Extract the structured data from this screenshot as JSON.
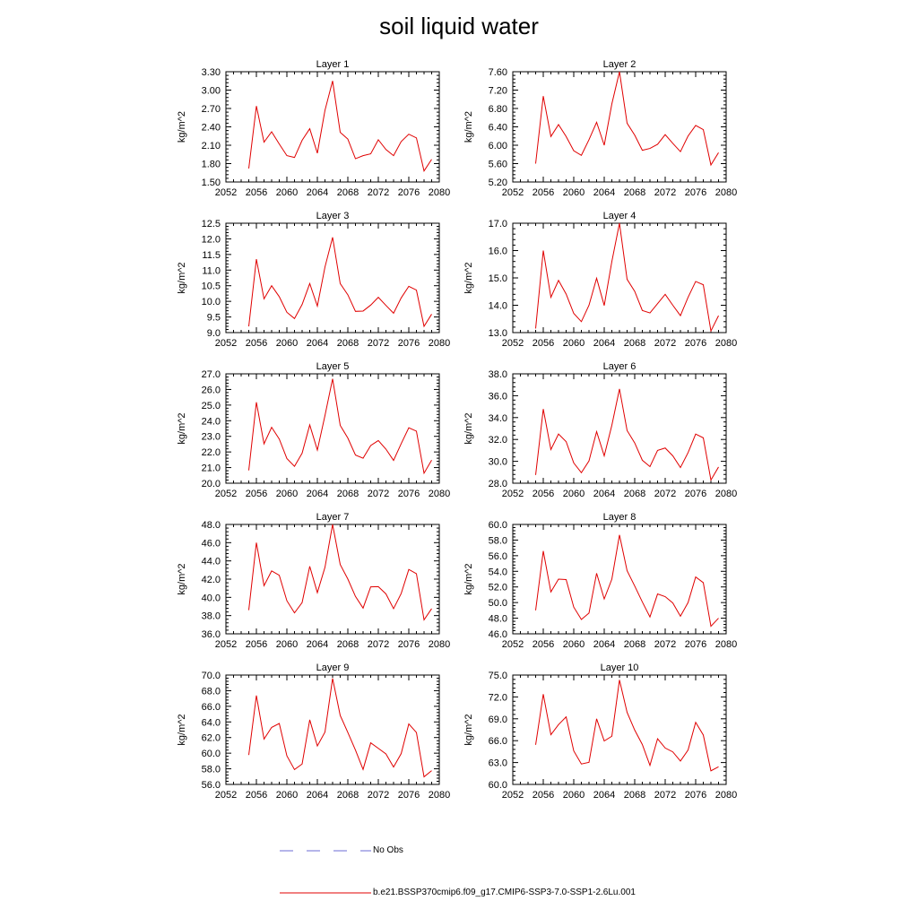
{
  "page": {
    "title": "soil liquid water"
  },
  "legend": {
    "no_obs_label": "No Obs",
    "model_label": "b.e21.BSSP370cmip6.f09_g17.CMIP6-SSP3-7.0-SSP1-2.6Lu.001",
    "obs_color": "#6b6bd6",
    "model_color": "#e00000"
  },
  "chart_data": [
    {
      "type": "line",
      "title": "Layer 1",
      "ylabel": "kg/m^2",
      "xlim": [
        2052,
        2080
      ],
      "ylim": [
        1.5,
        3.3
      ],
      "xticks": [
        "2052",
        "2056",
        "2060",
        "2064",
        "2068",
        "2072",
        "2076",
        "2080"
      ],
      "yticks": [
        "1.50",
        "1.80",
        "2.10",
        "2.40",
        "2.70",
        "3.00",
        "3.30"
      ],
      "x": [
        2055,
        2056,
        2057,
        2058,
        2059,
        2060,
        2061,
        2062,
        2063,
        2064,
        2065,
        2066,
        2067,
        2068,
        2069,
        2070,
        2071,
        2072,
        2073,
        2074,
        2075,
        2076,
        2077,
        2078,
        2079
      ],
      "series": [
        {
          "values": [
            1.72,
            2.74,
            2.15,
            2.32,
            2.12,
            1.93,
            1.9,
            2.18,
            2.37,
            1.97,
            2.67,
            3.15,
            2.31,
            2.2,
            1.88,
            1.93,
            1.96,
            2.19,
            2.03,
            1.93,
            2.16,
            2.28,
            2.22,
            1.68,
            1.87
          ]
        }
      ]
    },
    {
      "type": "line",
      "title": "Layer 2",
      "ylabel": "kg/m^2",
      "xlim": [
        2052,
        2080
      ],
      "ylim": [
        5.2,
        7.6
      ],
      "xticks": [
        "2052",
        "2056",
        "2060",
        "2064",
        "2068",
        "2072",
        "2076",
        "2080"
      ],
      "yticks": [
        "5.20",
        "5.60",
        "6.00",
        "6.40",
        "6.80",
        "7.20",
        "7.60"
      ],
      "x": [
        2055,
        2056,
        2057,
        2058,
        2059,
        2060,
        2061,
        2062,
        2063,
        2064,
        2065,
        2066,
        2067,
        2068,
        2069,
        2070,
        2071,
        2072,
        2073,
        2074,
        2075,
        2076,
        2077,
        2078,
        2079
      ],
      "series": [
        {
          "values": [
            5.6,
            7.07,
            6.19,
            6.45,
            6.19,
            5.88,
            5.78,
            6.12,
            6.5,
            6.0,
            6.9,
            7.6,
            6.48,
            6.22,
            5.89,
            5.93,
            6.02,
            6.23,
            6.04,
            5.86,
            6.2,
            6.43,
            6.34,
            5.57,
            5.84
          ]
        }
      ]
    },
    {
      "type": "line",
      "title": "Layer 3",
      "ylabel": "kg/m^2",
      "xlim": [
        2052,
        2080
      ],
      "ylim": [
        9.0,
        12.5
      ],
      "xticks": [
        "2052",
        "2056",
        "2060",
        "2064",
        "2068",
        "2072",
        "2076",
        "2080"
      ],
      "yticks": [
        "9.0",
        "9.5",
        "10.0",
        "10.5",
        "11.0",
        "11.5",
        "12.0",
        "12.5"
      ],
      "x": [
        2055,
        2056,
        2057,
        2058,
        2059,
        2060,
        2061,
        2062,
        2063,
        2064,
        2065,
        2066,
        2067,
        2068,
        2069,
        2070,
        2071,
        2072,
        2073,
        2074,
        2075,
        2076,
        2077,
        2078,
        2079
      ],
      "series": [
        {
          "values": [
            9.2,
            11.35,
            10.08,
            10.5,
            10.15,
            9.65,
            9.45,
            9.9,
            10.57,
            9.85,
            11.1,
            12.05,
            10.57,
            10.21,
            9.68,
            9.69,
            9.88,
            10.13,
            9.87,
            9.62,
            10.11,
            10.48,
            10.36,
            9.2,
            9.59
          ]
        }
      ]
    },
    {
      "type": "line",
      "title": "Layer 4",
      "ylabel": "kg/m^2",
      "xlim": [
        2052,
        2080
      ],
      "ylim": [
        13.0,
        17.0
      ],
      "xticks": [
        "2052",
        "2056",
        "2060",
        "2064",
        "2068",
        "2072",
        "2076",
        "2080"
      ],
      "yticks": [
        "13.0",
        "14.0",
        "15.0",
        "16.0",
        "17.0"
      ],
      "x": [
        2055,
        2056,
        2057,
        2058,
        2059,
        2060,
        2061,
        2062,
        2063,
        2064,
        2065,
        2066,
        2067,
        2068,
        2069,
        2070,
        2071,
        2072,
        2073,
        2074,
        2075,
        2076,
        2077,
        2078,
        2079
      ],
      "series": [
        {
          "values": [
            13.15,
            16.0,
            14.29,
            14.91,
            14.41,
            13.7,
            13.4,
            14.0,
            14.99,
            13.99,
            15.6,
            17.0,
            14.95,
            14.51,
            13.81,
            13.72,
            14.06,
            14.4,
            14.0,
            13.62,
            14.29,
            14.87,
            14.75,
            13.06,
            13.62
          ]
        }
      ]
    },
    {
      "type": "line",
      "title": "Layer 5",
      "ylabel": "kg/m^2",
      "xlim": [
        2052,
        2080
      ],
      "ylim": [
        20.0,
        27.0
      ],
      "xticks": [
        "2052",
        "2056",
        "2060",
        "2064",
        "2068",
        "2072",
        "2076",
        "2080"
      ],
      "yticks": [
        "20.0",
        "21.0",
        "22.0",
        "23.0",
        "24.0",
        "25.0",
        "26.0",
        "27.0"
      ],
      "x": [
        2055,
        2056,
        2057,
        2058,
        2059,
        2060,
        2061,
        2062,
        2063,
        2064,
        2065,
        2066,
        2067,
        2068,
        2069,
        2070,
        2071,
        2072,
        2073,
        2074,
        2075,
        2076,
        2077,
        2078,
        2079
      ],
      "series": [
        {
          "values": [
            20.82,
            25.18,
            22.52,
            23.58,
            22.83,
            21.58,
            21.08,
            21.92,
            23.73,
            22.12,
            24.33,
            26.68,
            23.7,
            22.89,
            21.8,
            21.6,
            22.41,
            22.73,
            22.18,
            21.46,
            22.53,
            23.55,
            23.33,
            20.64,
            21.48
          ]
        }
      ]
    },
    {
      "type": "line",
      "title": "Layer 6",
      "ylabel": "kg/m^2",
      "xlim": [
        2052,
        2080
      ],
      "ylim": [
        28.0,
        38.0
      ],
      "xticks": [
        "2052",
        "2056",
        "2060",
        "2064",
        "2068",
        "2072",
        "2076",
        "2080"
      ],
      "yticks": [
        "28.0",
        "30.0",
        "32.0",
        "34.0",
        "36.0",
        "38.0"
      ],
      "x": [
        2055,
        2056,
        2057,
        2058,
        2059,
        2060,
        2061,
        2062,
        2063,
        2064,
        2065,
        2066,
        2067,
        2068,
        2069,
        2070,
        2071,
        2072,
        2073,
        2074,
        2075,
        2076,
        2077,
        2078,
        2079
      ],
      "series": [
        {
          "values": [
            28.75,
            34.78,
            31.08,
            32.5,
            31.8,
            29.85,
            28.96,
            30.04,
            32.72,
            30.5,
            33.3,
            36.62,
            32.82,
            31.68,
            30.1,
            29.52,
            31.0,
            31.22,
            30.5,
            29.43,
            30.79,
            32.49,
            32.15,
            28.29,
            29.48
          ]
        }
      ]
    },
    {
      "type": "line",
      "title": "Layer 7",
      "ylabel": "kg/m^2",
      "xlim": [
        2052,
        2080
      ],
      "ylim": [
        36.0,
        48.0
      ],
      "xticks": [
        "2052",
        "2056",
        "2060",
        "2064",
        "2068",
        "2072",
        "2076",
        "2080"
      ],
      "yticks": [
        "36.0",
        "38.0",
        "40.0",
        "42.0",
        "44.0",
        "46.0",
        "48.0"
      ],
      "x": [
        2055,
        2056,
        2057,
        2058,
        2059,
        2060,
        2061,
        2062,
        2063,
        2064,
        2065,
        2066,
        2067,
        2068,
        2069,
        2070,
        2071,
        2072,
        2073,
        2074,
        2075,
        2076,
        2077,
        2078,
        2079
      ],
      "series": [
        {
          "values": [
            38.6,
            46.0,
            41.28,
            42.9,
            42.42,
            39.63,
            38.3,
            39.43,
            43.4,
            40.52,
            43.3,
            48.0,
            43.6,
            42.01,
            40.1,
            38.82,
            41.15,
            41.18,
            40.38,
            38.76,
            40.42,
            43.06,
            42.6,
            37.53,
            38.76
          ]
        }
      ]
    },
    {
      "type": "line",
      "title": "Layer 8",
      "ylabel": "kg/m^2",
      "xlim": [
        2052,
        2080
      ],
      "ylim": [
        46.0,
        60.0
      ],
      "xticks": [
        "2052",
        "2056",
        "2060",
        "2064",
        "2068",
        "2072",
        "2076",
        "2080"
      ],
      "yticks": [
        "46.0",
        "48.0",
        "50.0",
        "52.0",
        "54.0",
        "56.0",
        "58.0",
        "60.0"
      ],
      "x": [
        2055,
        2056,
        2057,
        2058,
        2059,
        2060,
        2061,
        2062,
        2063,
        2064,
        2065,
        2066,
        2067,
        2068,
        2069,
        2070,
        2071,
        2072,
        2073,
        2074,
        2075,
        2076,
        2077,
        2078,
        2079
      ],
      "series": [
        {
          "values": [
            49.0,
            56.6,
            51.36,
            53.0,
            52.95,
            49.42,
            47.83,
            48.66,
            53.75,
            50.46,
            53.0,
            58.65,
            54.08,
            52.12,
            50.08,
            48.16,
            51.1,
            50.76,
            49.95,
            48.25,
            50.0,
            53.28,
            52.55,
            46.97,
            48.0
          ]
        }
      ]
    },
    {
      "type": "line",
      "title": "Layer 9",
      "ylabel": "kg/m^2",
      "xlim": [
        2052,
        2080
      ],
      "ylim": [
        56.0,
        70.0
      ],
      "xticks": [
        "2052",
        "2056",
        "2060",
        "2064",
        "2068",
        "2072",
        "2076",
        "2080"
      ],
      "yticks": [
        "56.0",
        "58.0",
        "60.0",
        "62.0",
        "64.0",
        "66.0",
        "68.0",
        "70.0"
      ],
      "x": [
        2055,
        2056,
        2057,
        2058,
        2059,
        2060,
        2061,
        2062,
        2063,
        2064,
        2065,
        2066,
        2067,
        2068,
        2069,
        2070,
        2071,
        2072,
        2073,
        2074,
        2075,
        2076,
        2077,
        2078,
        2079
      ],
      "series": [
        {
          "values": [
            59.76,
            67.38,
            61.8,
            63.3,
            63.8,
            59.66,
            57.9,
            58.61,
            64.27,
            60.92,
            62.7,
            69.57,
            64.83,
            62.65,
            60.4,
            57.92,
            61.33,
            60.62,
            59.9,
            58.22,
            59.94,
            63.74,
            62.65,
            56.97,
            57.76
          ]
        }
      ]
    },
    {
      "type": "line",
      "title": "Layer 10",
      "ylabel": "kg/m^2",
      "xlim": [
        2052,
        2080
      ],
      "ylim": [
        60.0,
        75.0
      ],
      "xticks": [
        "2052",
        "2056",
        "2060",
        "2064",
        "2068",
        "2072",
        "2076",
        "2080"
      ],
      "yticks": [
        "60.0",
        "63.0",
        "66.0",
        "69.0",
        "72.0",
        "75.0"
      ],
      "x": [
        2055,
        2056,
        2057,
        2058,
        2059,
        2060,
        2061,
        2062,
        2063,
        2064,
        2065,
        2066,
        2067,
        2068,
        2069,
        2070,
        2071,
        2072,
        2073,
        2074,
        2075,
        2076,
        2077,
        2078,
        2079
      ],
      "series": [
        {
          "values": [
            65.43,
            72.38,
            66.82,
            68.2,
            69.27,
            64.6,
            62.8,
            63.03,
            69.0,
            65.96,
            66.61,
            74.33,
            69.89,
            67.45,
            65.47,
            62.61,
            66.27,
            64.99,
            64.46,
            63.21,
            64.71,
            68.52,
            66.78,
            61.86,
            62.42
          ]
        }
      ]
    }
  ]
}
